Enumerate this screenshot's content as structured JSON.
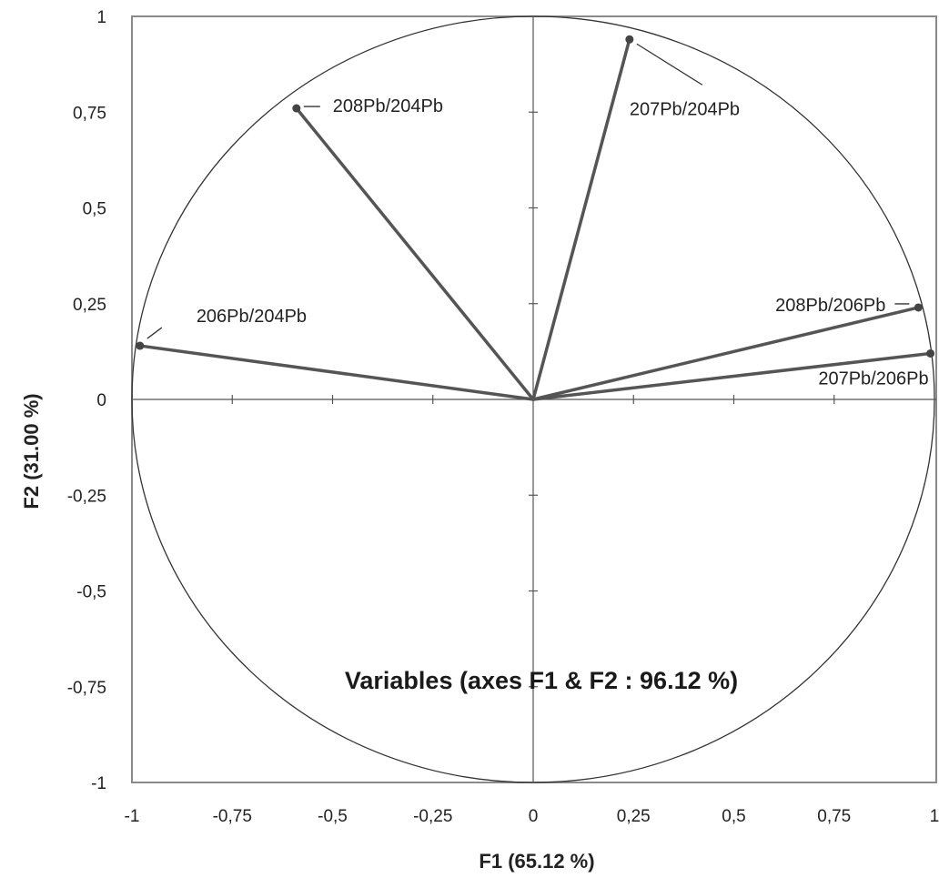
{
  "chart_data": {
    "type": "scatter",
    "title": "Variables (axes F1 & F2 : 96.12 %)",
    "xlabel": "F1 (65.12 %)",
    "ylabel": "F2 (31.00 %)",
    "xlim": [
      -1,
      1
    ],
    "ylim": [
      -1,
      1
    ],
    "xticks": [
      -1,
      -0.75,
      -0.5,
      -0.25,
      0,
      0.25,
      0.5,
      0.75,
      1
    ],
    "yticks": [
      -1,
      -0.75,
      -0.5,
      -0.25,
      0,
      0.25,
      0.5,
      0.75,
      1
    ],
    "xtick_labels": [
      "-1",
      "-0,75",
      "-0,5",
      "-0,25",
      "0",
      "0,25",
      "0,5",
      "0,75",
      "1"
    ],
    "ytick_labels": [
      "-1",
      "-0,75",
      "-0,5",
      "-0,25",
      "0",
      "0,25",
      "0,5",
      "0,75",
      "1"
    ],
    "unit_circle": true,
    "grid": false,
    "variables": [
      {
        "name": "206Pb/204Pb",
        "x": -0.98,
        "y": 0.14
      },
      {
        "name": "208Pb/204Pb",
        "x": -0.59,
        "y": 0.76
      },
      {
        "name": "207Pb/204Pb",
        "x": 0.24,
        "y": 0.94
      },
      {
        "name": "208Pb/206Pb",
        "x": 0.96,
        "y": 0.24
      },
      {
        "name": "207Pb/206Pb",
        "x": 0.99,
        "y": 0.12
      }
    ]
  }
}
